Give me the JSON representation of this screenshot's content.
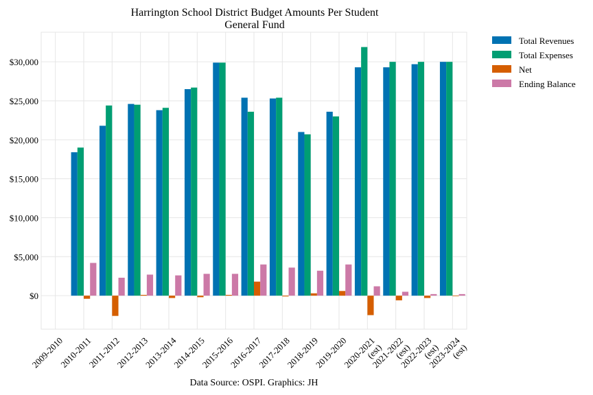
{
  "chart_data": {
    "type": "bar",
    "title": "Harrington School District Budget Amounts Per Student",
    "subtitle": "General Fund",
    "source_note": "Data Source: OSPI. Graphics: JH",
    "xlabel": "",
    "ylabel": "",
    "ylim": [
      -4300,
      33800
    ],
    "yticks": [
      0,
      5000,
      10000,
      15000,
      20000,
      25000,
      30000
    ],
    "ytick_labels": [
      "$0",
      "$5,000",
      "$10,000",
      "$15,000",
      "$20,000",
      "$25,000",
      "$30,000"
    ],
    "grid": true,
    "legend_position": "outside-top-right",
    "categories": [
      [
        "2009-2010"
      ],
      [
        "2010-2011"
      ],
      [
        "2011-2012"
      ],
      [
        "2012-2013"
      ],
      [
        "2013-2014"
      ],
      [
        "2014-2015"
      ],
      [
        "2015-2016"
      ],
      [
        "2016-2017"
      ],
      [
        "2017-2018"
      ],
      [
        "2018-2019"
      ],
      [
        "2019-2020"
      ],
      [
        "2020-2021",
        "(est)"
      ],
      [
        "2021-2022",
        "(est)"
      ],
      [
        "2022-2023",
        "(est)"
      ],
      [
        "2023-2024",
        "(est)"
      ]
    ],
    "series": [
      {
        "name": "Total Revenues",
        "color": "#0072B2",
        "values": [
          null,
          18400,
          21800,
          24600,
          23800,
          26500,
          29900,
          25400,
          25300,
          21000,
          23600,
          29300,
          29300,
          29700,
          30000
        ]
      },
      {
        "name": "Total Expenses",
        "color": "#009E73",
        "values": [
          null,
          19000,
          24400,
          24500,
          24100,
          26700,
          29900,
          23600,
          25400,
          20700,
          23000,
          31900,
          30000,
          30000,
          30000
        ]
      },
      {
        "name": "Net",
        "color": "#D55E00",
        "values": [
          null,
          -400,
          -2600,
          100,
          -300,
          -200,
          100,
          1800,
          -100,
          300,
          600,
          -2500,
          -600,
          -300,
          0
        ]
      },
      {
        "name": "Ending Balance",
        "color": "#CC79A7",
        "values": [
          null,
          4200,
          2300,
          2700,
          2600,
          2800,
          2800,
          4000,
          3600,
          3200,
          4000,
          1200,
          500,
          200,
          200
        ]
      }
    ]
  }
}
